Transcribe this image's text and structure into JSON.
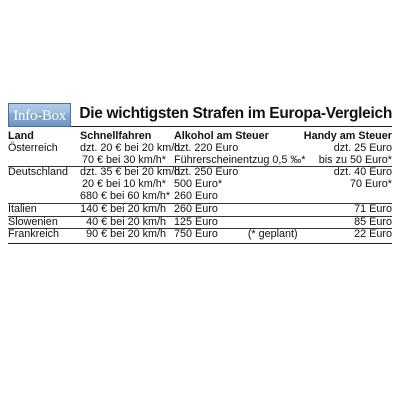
{
  "badge": "Info-Box",
  "title": "Die wichtigsten Strafen im Europa-Vergleich",
  "columns": [
    "Land",
    "Schnellfahren",
    "Alkohol am Steuer",
    "Handy am Steuer"
  ],
  "rows": [
    [
      "Österreich",
      "dzt. 20 € bei 20 km/h",
      "dzt. 220 Euro",
      "dzt. 25 Euro"
    ],
    [
      "",
      "70 € bei 30 km/h*",
      "Führerscheinentzug 0,5 ‰*",
      "bis zu 50 Euro*"
    ],
    [
      "Deutschland",
      "dzt. 35 € bei 20 km/h",
      "dzt. 250 Euro",
      "dzt. 40 Euro"
    ],
    [
      "",
      "20 € bei 10 km/h*",
      "500 Euro*",
      "70 Euro*"
    ],
    [
      "",
      "680 € bei 60 km/h*",
      "260 Euro",
      ""
    ],
    [
      "Italien",
      "140 € bei 20 km/h",
      "260 Euro",
      "71 Euro"
    ],
    [
      "Slowenien",
      "40 € bei 20 km/h",
      "125 Euro",
      "85 Euro"
    ],
    [
      "Frankreich",
      "90 € bei 20 km/h",
      "750 Euro          (* geplant)",
      "22 Euro"
    ]
  ]
}
